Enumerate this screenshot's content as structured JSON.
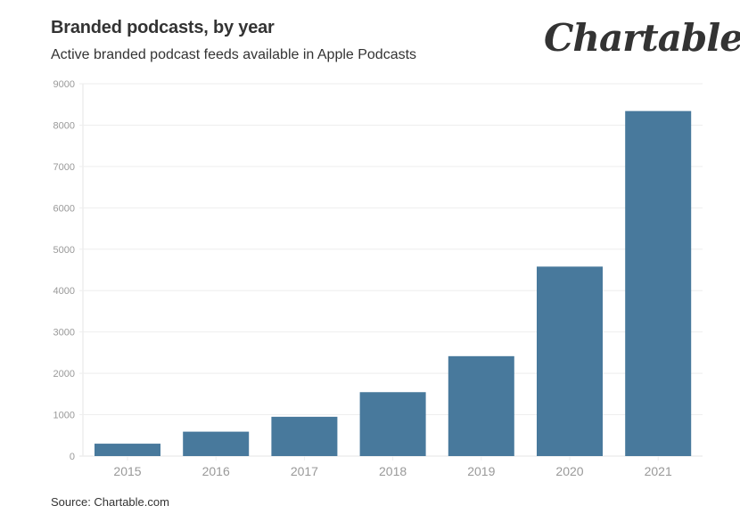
{
  "header": {
    "title": "Branded podcasts, by year",
    "subtitle": "Active branded podcast feeds available in Apple Podcasts",
    "logo_text": "Chartable"
  },
  "footer": {
    "source": "Source: Chartable.com"
  },
  "colors": {
    "bar": "#48799c",
    "grid": "#eeeeee",
    "tick_text": "#999999",
    "text": "#333333"
  },
  "chart_data": {
    "type": "bar",
    "title": "Branded podcasts, by year",
    "subtitle": "Active branded podcast feeds available in Apple Podcasts",
    "xlabel": "",
    "ylabel": "",
    "categories": [
      "2015",
      "2016",
      "2017",
      "2018",
      "2019",
      "2020",
      "2021"
    ],
    "values": [
      300,
      590,
      950,
      1545,
      2415,
      4580,
      8340
    ],
    "ylim": [
      0,
      9000
    ],
    "yticks": [
      0,
      1000,
      2000,
      3000,
      4000,
      5000,
      6000,
      7000,
      8000,
      9000
    ],
    "grid": true,
    "legend": "none",
    "source": "Source: Chartable.com"
  }
}
